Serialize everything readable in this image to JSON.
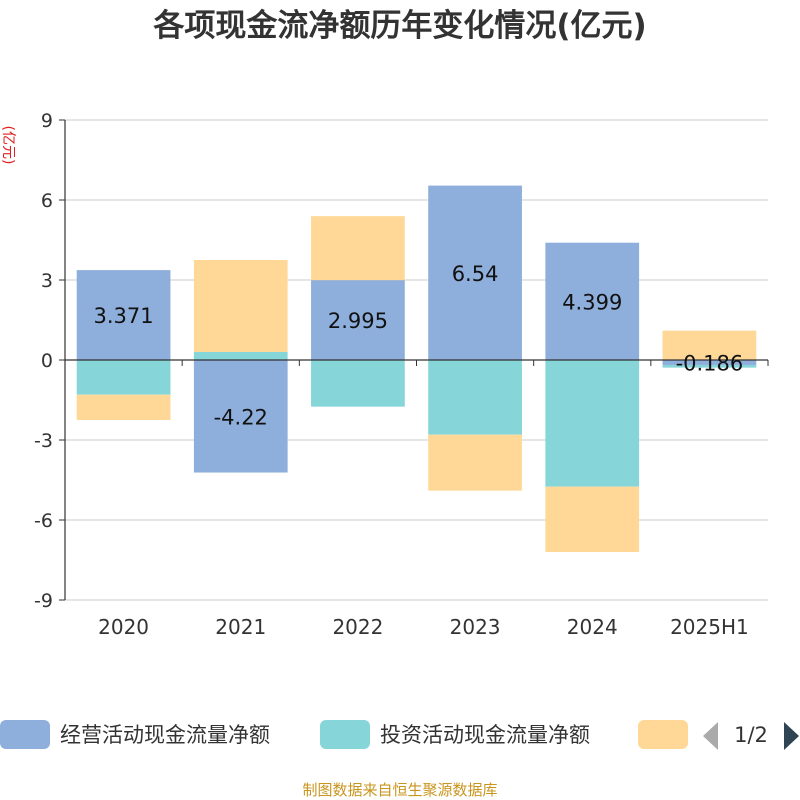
{
  "title": "各项现金流净额历年变化情况(亿元)",
  "source_note": "制图数据来自恒生聚源数据库",
  "legend_page": "1/2",
  "colors": {
    "operating": "#8eaedb",
    "investing": "#86d5d8",
    "financing": "#ffd898",
    "axis": "#333333",
    "grid": "#cccccc",
    "ylabel": "#e02020",
    "pager_disabled": "#aaaaaa",
    "pager_active": "#2f4554"
  },
  "chart_data": {
    "type": "bar",
    "stacked": true,
    "title": "各项现金流净额历年变化情况(亿元)",
    "ylabel": "(亿元)",
    "xlabel": "",
    "categories": [
      "2020",
      "2021",
      "2022",
      "2023",
      "2024",
      "2025H1"
    ],
    "ylim": [
      -9,
      9
    ],
    "yticks": [
      -9,
      -6,
      -3,
      0,
      3,
      6,
      9
    ],
    "grid": true,
    "legend_position": "bottom",
    "series": [
      {
        "name": "经营活动现金流量净额",
        "values": [
          3.371,
          -4.22,
          2.995,
          6.54,
          4.399,
          -0.186
        ],
        "labels": [
          "3.371",
          "-4.22",
          "2.995",
          "6.54",
          "4.399",
          "-0.186"
        ]
      },
      {
        "name": "投资活动现金流量净额",
        "values": [
          -1.3,
          0.3,
          -1.75,
          -2.8,
          -4.75,
          -0.1
        ]
      },
      {
        "name": "",
        "values": [
          -0.95,
          3.45,
          2.4,
          -2.1,
          -2.45,
          1.1
        ]
      }
    ]
  }
}
